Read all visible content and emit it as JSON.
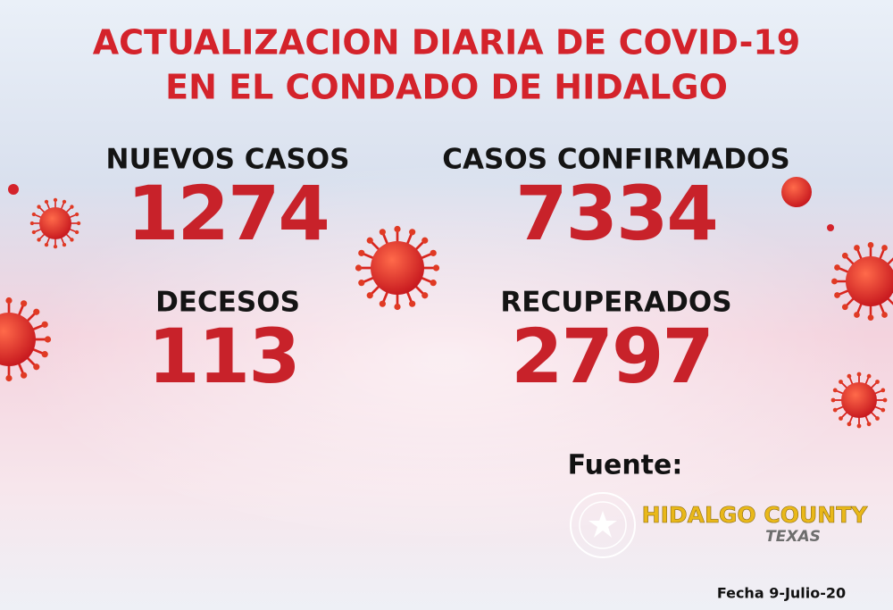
{
  "header": {
    "title_lines": [
      "ACTUALIZACION DIARIA DE COVID-19",
      "EN EL CONDADO DE HIDALGO"
    ]
  },
  "stats": [
    {
      "label": "NUEVOS CASOS",
      "value": 1274
    },
    {
      "label": "CASOS CONFIRMADOS",
      "value": 7334
    },
    {
      "label": "DECESOS",
      "value": 113
    },
    {
      "label": "RECUPERADOS",
      "value": 2797
    }
  ],
  "source": {
    "label": "Fuente:",
    "name": "HIDALGO COUNTY",
    "state": "TEXAS"
  },
  "footer": {
    "date": "Fecha 9-Julio-20"
  }
}
